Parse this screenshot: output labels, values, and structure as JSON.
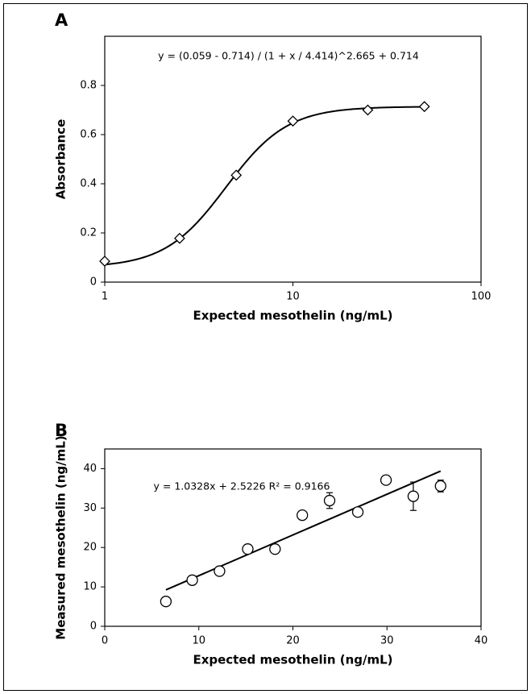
{
  "chart_data": [
    {
      "type": "scatter",
      "panel": "A",
      "annotation": "y = (0.059 - 0.714) / (1 + x / 4.414)^2.665 + 0.714",
      "x_label": "Expected mesothelin (ng/mL)",
      "y_label": "Absorbance",
      "x_scale": "log",
      "xlim": [
        1,
        100
      ],
      "xticks": [
        1,
        10,
        100
      ],
      "ylim": [
        0,
        1.0
      ],
      "yticks": [
        0,
        0.2,
        0.4,
        0.6,
        0.8
      ],
      "marker": "diamond",
      "color": "#000000",
      "x": [
        1,
        2.5,
        5,
        10,
        25,
        50
      ],
      "values": [
        0.085,
        0.178,
        0.435,
        0.655,
        0.7,
        0.714
      ],
      "fit": {
        "kind": "logistic",
        "bottom": 0.059,
        "top": 0.714,
        "mid": 4.414,
        "slope": 2.665
      }
    },
    {
      "type": "scatter",
      "panel": "B",
      "annotation": "y = 1.0328x + 2.5226 R² = 0.9166",
      "x_label": "Expected mesothelin (ng/mL)",
      "y_label": "Measured mesothelin (ng/mL)",
      "x_scale": "linear",
      "xlim": [
        0,
        40
      ],
      "xticks": [
        0,
        10,
        20,
        30,
        40
      ],
      "ylim": [
        0,
        45
      ],
      "yticks": [
        0,
        10,
        20,
        30,
        40
      ],
      "marker": "circle",
      "color": "#000000",
      "x": [
        6.5,
        9.3,
        12.2,
        15.2,
        18.1,
        21,
        23.9,
        26.9,
        29.9,
        32.8,
        35.7
      ],
      "values": [
        6.3,
        11.7,
        14,
        19.6,
        19.6,
        28.2,
        31.9,
        29,
        37.1,
        33,
        35.6
      ],
      "errors": [
        0,
        0.3,
        0.5,
        0.5,
        0.3,
        0,
        2,
        0.8,
        0,
        3.6,
        1.5
      ],
      "fit": {
        "kind": "linear",
        "slope": 1.0328,
        "intercept": 2.5226
      }
    }
  ]
}
